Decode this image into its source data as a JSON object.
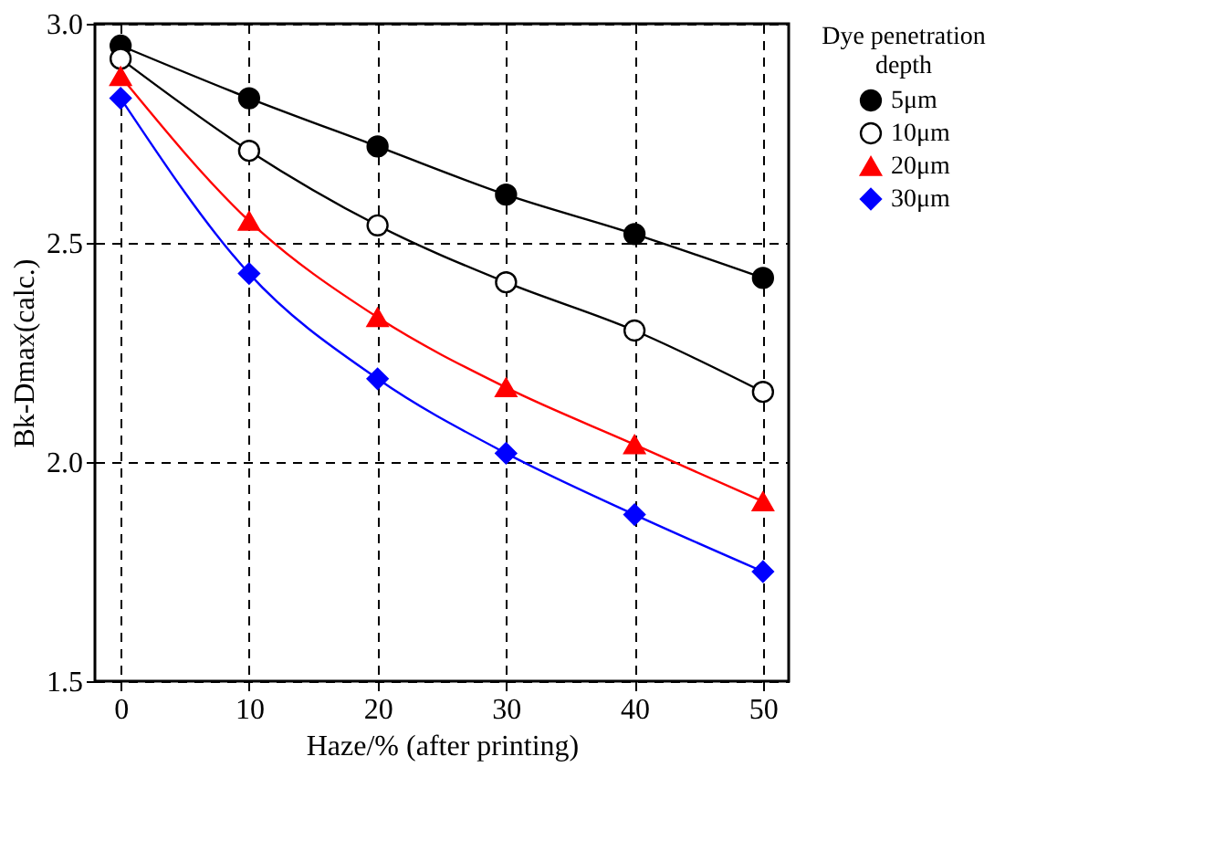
{
  "chart_data": {
    "type": "line",
    "xlabel": "Haze/% (after printing)",
    "ylabel": "Bk-Dmax(calc.)",
    "legend_title": "Dye penetration depth",
    "x": [
      0,
      10,
      20,
      30,
      40,
      50
    ],
    "xlim": [
      -2,
      52
    ],
    "xticks": [
      0,
      10,
      20,
      30,
      40,
      50
    ],
    "ylim": [
      1.5,
      3.0
    ],
    "yticks": [
      1.5,
      {
        "value": 2,
        "label": "2.0"
      },
      2.5,
      {
        "value": 3,
        "label": "3.0"
      }
    ],
    "grid": true,
    "legend": "right",
    "line_style": "solid",
    "series": [
      {
        "name": "5μm",
        "color": "#000000",
        "marker": "circle",
        "values": [
          2.95,
          2.83,
          2.72,
          2.61,
          2.52,
          2.42
        ]
      },
      {
        "name": "10μm",
        "color": "#000000",
        "marker": "circle",
        "values": [
          2.92,
          2.71,
          2.54,
          2.41,
          2.3,
          2.16
        ]
      },
      {
        "name": "20μm",
        "color": "#ff0000",
        "marker": "triangle",
        "values": [
          2.88,
          2.55,
          2.33,
          2.17,
          2.04,
          1.91
        ]
      },
      {
        "name": "30μm",
        "color": "#0000ff",
        "marker": "diamond",
        "values": [
          2.83,
          2.43,
          2.19,
          2.02,
          1.88,
          1.75
        ]
      }
    ]
  }
}
